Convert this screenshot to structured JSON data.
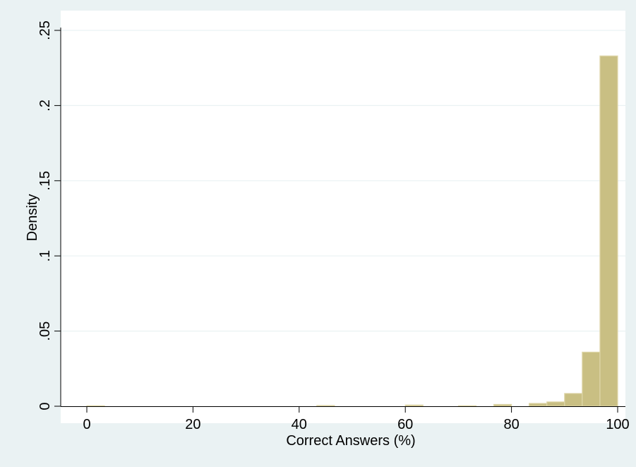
{
  "chart_data": {
    "type": "bar",
    "subtype": "histogram",
    "xlabel": "Correct Answers (%)",
    "ylabel": "Density",
    "xlim": [
      -5,
      102
    ],
    "ylim": [
      0,
      0.25
    ],
    "x_ticks": [
      0,
      20,
      40,
      60,
      80,
      100
    ],
    "x_tick_labels": [
      "0",
      "20",
      "40",
      "60",
      "80",
      "100"
    ],
    "y_ticks": [
      0,
      0.05,
      0.1,
      0.15,
      0.2,
      0.25
    ],
    "y_tick_labels": [
      "0",
      ".05",
      ".1",
      ".15",
      ".2",
      ".25"
    ],
    "grid": true,
    "bar_color": "#c9bf83",
    "bar_edge_color": "#ded6a8",
    "plot_background": "#ffffff",
    "outer_background": "#eaf2f3",
    "bin_width": 3.33,
    "bins": [
      {
        "x0": 0.0,
        "value": 0.0003
      },
      {
        "x0": 43.33,
        "value": 0.0005
      },
      {
        "x0": 60.0,
        "value": 0.0008
      },
      {
        "x0": 70.0,
        "value": 0.0003
      },
      {
        "x0": 76.67,
        "value": 0.0012
      },
      {
        "x0": 83.33,
        "value": 0.0019
      },
      {
        "x0": 86.67,
        "value": 0.0029
      },
      {
        "x0": 90.0,
        "value": 0.0085
      },
      {
        "x0": 93.33,
        "value": 0.036
      },
      {
        "x0": 96.67,
        "value": 0.233
      }
    ]
  }
}
